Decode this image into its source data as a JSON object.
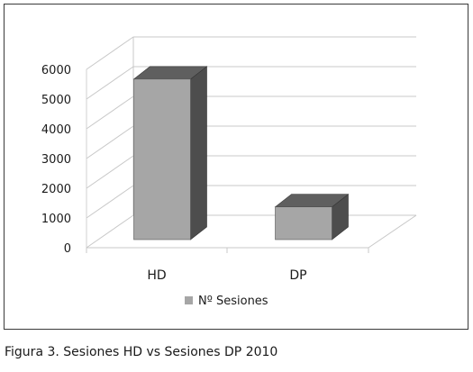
{
  "caption": "Figura 3. Sesiones HD vs Sesiones DP 2010",
  "chart_data": {
    "type": "bar",
    "style": "3d-column",
    "categories": [
      "HD",
      "DP"
    ],
    "series": [
      {
        "name": "Nº Sesiones",
        "values": [
          5400,
          1100
        ]
      }
    ],
    "title": "",
    "xlabel": "",
    "ylabel": "",
    "ylim": [
      0,
      6000
    ],
    "yticks": [
      "0",
      "1000",
      "2000",
      "3000",
      "4000",
      "5000",
      "6000"
    ],
    "grid": true,
    "legend": "bottom",
    "colors": {
      "bar_front": "#a6a6a6",
      "bar_side": "#4d4d4d",
      "bar_top": "#5f5f5f",
      "grid": "#c8c8c8"
    }
  }
}
